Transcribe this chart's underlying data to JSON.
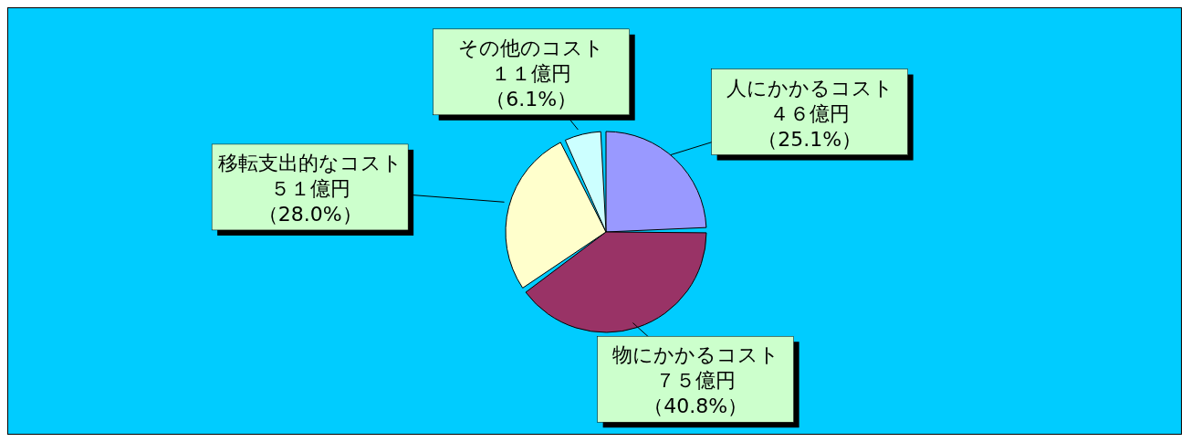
{
  "chart_data": {
    "type": "pie",
    "categories": [
      "人にかかるコスト",
      "物にかかるコスト",
      "移転支出的なコスト",
      "その他のコスト"
    ],
    "values": [
      46,
      75,
      51,
      11
    ],
    "colors": [
      "#9999ff",
      "#993366",
      "#ffffcc",
      "#ccffff"
    ],
    "value_labels": [
      "４６億円（25.1%）",
      "７５億円（40.8%）",
      "５１億円（28.0%）",
      "１１億円（6.1%）"
    ]
  }
}
